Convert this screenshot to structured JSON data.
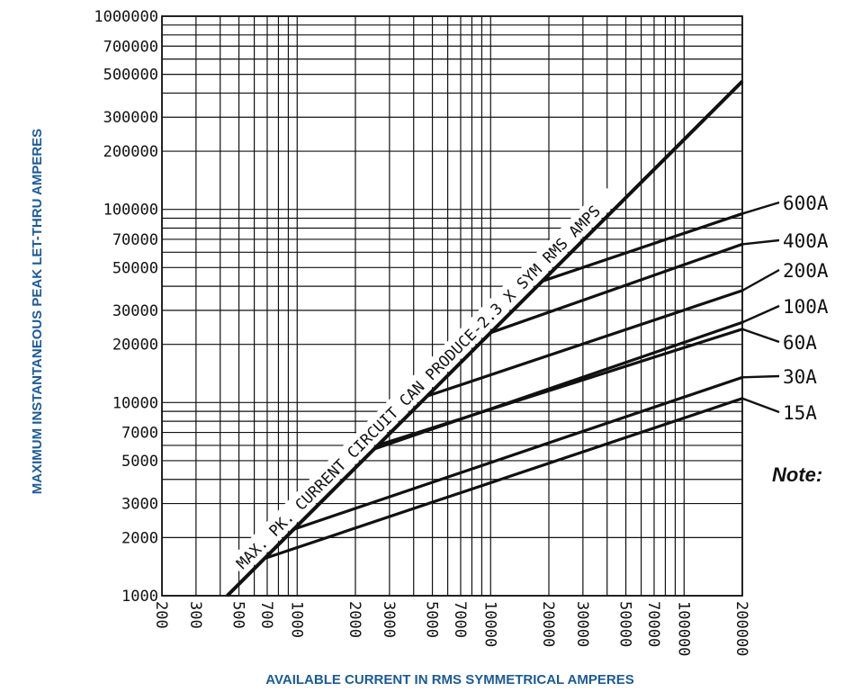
{
  "chart_data": {
    "type": "line",
    "scale": {
      "x": "log",
      "y": "log"
    },
    "grid": true,
    "xlabel": "AVAILABLE CURRENT IN RMS SYMMETRICAL AMPERES",
    "ylabel": "MAXIMUM INSTANTANEOUS PEAK LET-THRU AMPERES",
    "xlim": [
      200,
      200000
    ],
    "ylim": [
      1000,
      1000000
    ],
    "x_ticks": [
      "200",
      "300",
      "500",
      "700",
      "1000",
      "2000",
      "3000",
      "5000",
      "7000",
      "10000",
      "20000",
      "30000",
      "50000",
      "70000",
      "100000",
      "200000"
    ],
    "y_ticks": [
      "1000",
      "2000",
      "3000",
      "5000",
      "7000",
      "10000",
      "20000",
      "30000",
      "50000",
      "70000",
      "100000",
      "200000",
      "300000",
      "500000",
      "700000",
      "1000000"
    ],
    "reference_line": {
      "label": "MAX. PK. CURRENT CIRCUIT CAN PRODUCE-2.3 X SYM RMS AMPS",
      "points": [
        [
          435,
          1000
        ],
        [
          200000,
          460000
        ]
      ]
    },
    "series": [
      {
        "name": "600A",
        "points": [
          [
            18500,
            42500
          ],
          [
            200000,
            95000
          ]
        ]
      },
      {
        "name": "400A",
        "points": [
          [
            10000,
            23000
          ],
          [
            200000,
            66000
          ]
        ]
      },
      {
        "name": "200A",
        "points": [
          [
            4700,
            10800
          ],
          [
            200000,
            38000
          ]
        ]
      },
      {
        "name": "100A",
        "points": [
          [
            2500,
            5750
          ],
          [
            200000,
            26000
          ]
        ]
      },
      {
        "name": "60A",
        "points": [
          [
            2600,
            6000
          ],
          [
            200000,
            24000
          ]
        ]
      },
      {
        "name": "30A",
        "points": [
          [
            950,
            2200
          ],
          [
            200000,
            13500
          ]
        ]
      },
      {
        "name": "15A",
        "points": [
          [
            680,
            1560
          ],
          [
            200000,
            10500
          ]
        ]
      }
    ],
    "annotations": [
      "Note:"
    ],
    "colors": {
      "axis_title": "#1a5a9a",
      "lines": "#111111",
      "background": "#ffffff"
    }
  }
}
